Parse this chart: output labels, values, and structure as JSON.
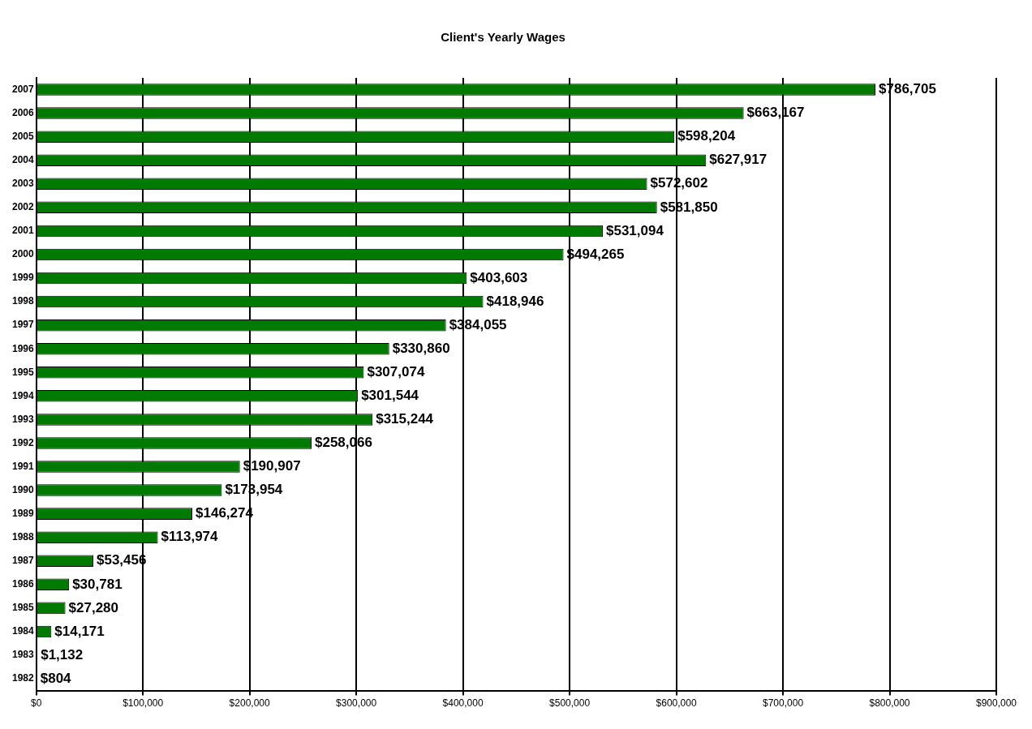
{
  "chart_data": {
    "type": "bar",
    "orientation": "horizontal",
    "title": "Client's Yearly Wages",
    "categories": [
      "2007",
      "2006",
      "2005",
      "2004",
      "2003",
      "2002",
      "2001",
      "2000",
      "1999",
      "1998",
      "1997",
      "1996",
      "1995",
      "1994",
      "1993",
      "1992",
      "1991",
      "1990",
      "1989",
      "1988",
      "1987",
      "1986",
      "1985",
      "1984",
      "1983",
      "1982"
    ],
    "values": [
      786705,
      663167,
      598204,
      627917,
      572602,
      581850,
      531094,
      494265,
      403603,
      418946,
      384055,
      330860,
      307074,
      301544,
      315244,
      258066,
      190907,
      173954,
      146274,
      113974,
      53456,
      30781,
      27280,
      14171,
      1132,
      804
    ],
    "value_labels": [
      "$786,705",
      "$663,167",
      "$598,204",
      "$627,917",
      "$572,602",
      "$581,850",
      "$531,094",
      "$494,265",
      "$403,603",
      "$418,946",
      "$384,055",
      "$330,860",
      "$307,074",
      "$301,544",
      "$315,244",
      "$258,066",
      "$190,907",
      "$173,954",
      "$146,274",
      "$113,974",
      "$53,456",
      "$30,781",
      "$27,280",
      "$14,171",
      "$1,132",
      "$804"
    ],
    "color": "#007a00",
    "xlim": [
      0,
      900000
    ],
    "xticks": [
      {
        "value": 0,
        "label": "$0"
      },
      {
        "value": 100000,
        "label": "$100,000"
      },
      {
        "value": 200000,
        "label": "$200,000"
      },
      {
        "value": 300000,
        "label": "$300,000"
      },
      {
        "value": 400000,
        "label": "$400,000"
      },
      {
        "value": 500000,
        "label": "$500,000"
      },
      {
        "value": 600000,
        "label": "$600,000"
      },
      {
        "value": 700000,
        "label": "$700,000"
      },
      {
        "value": 800000,
        "label": "$800,000"
      },
      {
        "value": 900000,
        "label": "$900,000"
      }
    ],
    "grid": "x"
  }
}
